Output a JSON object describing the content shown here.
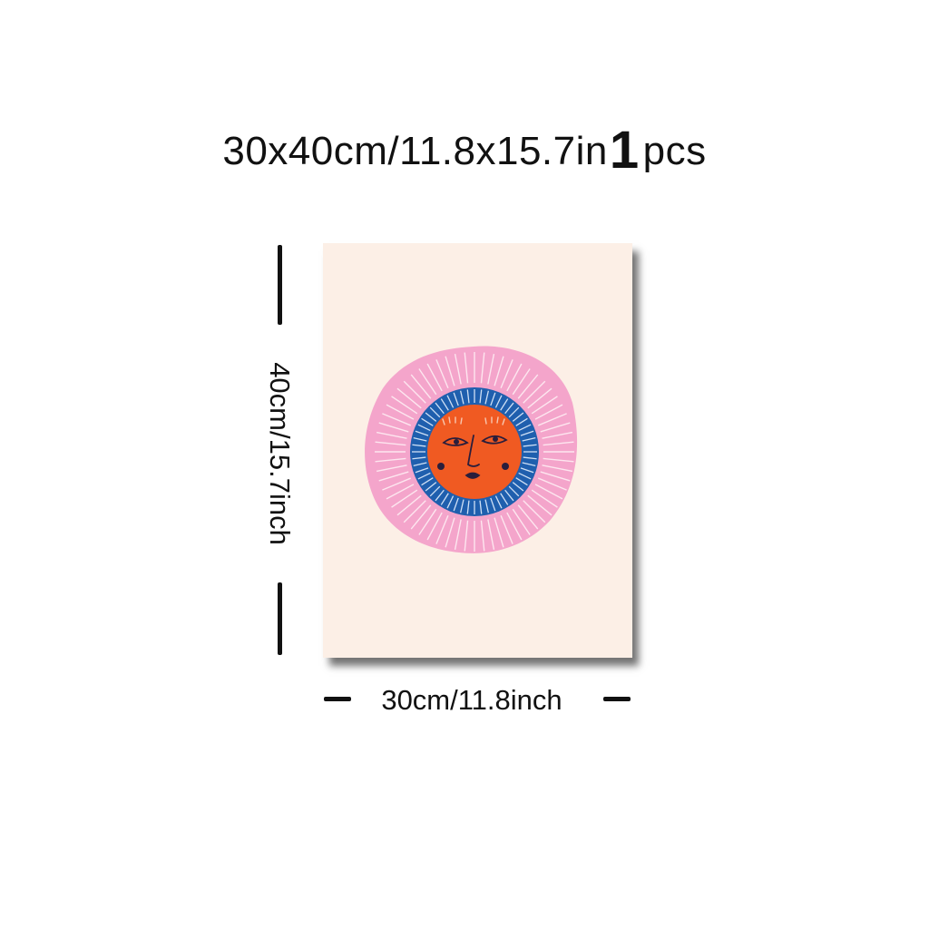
{
  "title": {
    "size_text": "30x40cm/11.8x15.7in",
    "quantity_number": "1",
    "quantity_unit": "pcs"
  },
  "dimensions": {
    "height_label": "40cm/15.7inch",
    "width_label": "30cm/11.8inch"
  },
  "poster": {
    "background_color": "#fcefe6",
    "outer_ring_color": "#f4a5cb",
    "inner_ring_color": "#1f5fae",
    "face_color": "#f05a22",
    "line_color": "#2a1e3c"
  }
}
